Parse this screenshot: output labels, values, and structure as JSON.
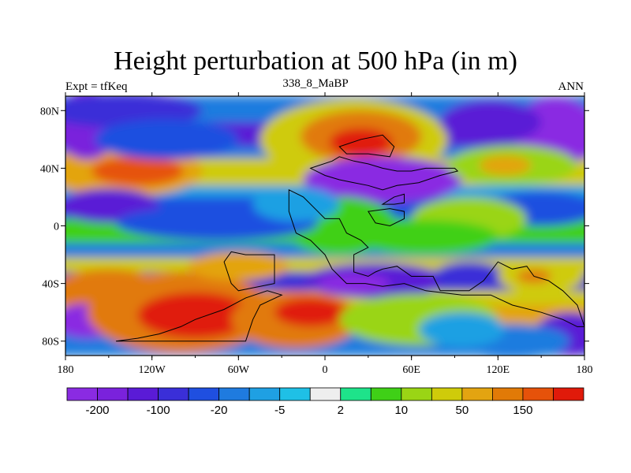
{
  "title": "Height perturbation at 500 hPa (in m)",
  "left_label": "Expt = tfKeq",
  "center_label": "338_8_MaBP",
  "right_label": "ANN",
  "map": {
    "lon_range": [
      -180,
      180
    ],
    "lat_range": [
      -90,
      90
    ],
    "x_ticks": [
      {
        "lon": -180,
        "label": "180"
      },
      {
        "lon": -120,
        "label": "120W"
      },
      {
        "lon": -60,
        "label": "60W"
      },
      {
        "lon": 0,
        "label": "0"
      },
      {
        "lon": 60,
        "label": "60E"
      },
      {
        "lon": 120,
        "label": "120E"
      },
      {
        "lon": 180,
        "label": "180"
      }
    ],
    "y_ticks": [
      {
        "lat": 80,
        "label": "80N"
      },
      {
        "lat": 40,
        "label": "40N"
      },
      {
        "lat": 0,
        "label": "0"
      },
      {
        "lat": -40,
        "label": "40S"
      },
      {
        "lat": -80,
        "label": "80S"
      }
    ]
  },
  "colorbar": {
    "colors": [
      "#8a2be2",
      "#7a22dc",
      "#5a1bd6",
      "#3a2fd8",
      "#1f4fe0",
      "#1f7bdf",
      "#1fa0e3",
      "#1fc0e6",
      "#eeeeee",
      "#1ee38a",
      "#3fd017",
      "#9ad515",
      "#cfcb0a",
      "#e3a411",
      "#e17a07",
      "#e6520a",
      "#e01a0a"
    ],
    "labels": [
      {
        "after_box": 1,
        "text": "-200"
      },
      {
        "after_box": 3,
        "text": "-100"
      },
      {
        "after_box": 5,
        "text": "-20"
      },
      {
        "after_box": 7,
        "text": "-5"
      },
      {
        "after_box": 9,
        "text": "2"
      },
      {
        "after_box": 11,
        "text": "10"
      },
      {
        "after_box": 13,
        "text": "50"
      },
      {
        "after_box": 15,
        "text": "150"
      }
    ]
  },
  "field_blobs": [
    {
      "lon": 20,
      "lat": 60,
      "rlon": 65,
      "rlat": 28,
      "v": 4
    },
    {
      "lon": 25,
      "lat": 62,
      "rlon": 42,
      "rlat": 18,
      "v": 6
    },
    {
      "lon": 25,
      "lat": 58,
      "rlon": 22,
      "rlat": 10,
      "v": 8
    },
    {
      "lon": 40,
      "lat": 32,
      "rlon": 55,
      "rlat": 16,
      "v": -8
    },
    {
      "lon": 55,
      "lat": 35,
      "rlon": 20,
      "rlat": 6,
      "v": -10
    },
    {
      "lon": -140,
      "lat": 38,
      "rlon": 55,
      "rlat": 18,
      "v": 5
    },
    {
      "lon": -130,
      "lat": 38,
      "rlon": 32,
      "rlat": 10,
      "v": 7
    },
    {
      "lon": -165,
      "lat": 70,
      "rlon": 22,
      "rlat": 24,
      "v": -7
    },
    {
      "lon": -140,
      "lat": 80,
      "rlon": 55,
      "rlat": 12,
      "v": -5
    },
    {
      "lon": -150,
      "lat": 14,
      "rlon": 35,
      "rlat": 12,
      "v": -6
    },
    {
      "lon": -110,
      "lat": 60,
      "rlon": 50,
      "rlat": 14,
      "v": -4
    },
    {
      "lon": 160,
      "lat": 65,
      "rlon": 30,
      "rlat": 24,
      "v": -8
    },
    {
      "lon": 115,
      "lat": 72,
      "rlon": 35,
      "rlat": 15,
      "v": -6
    },
    {
      "lon": 130,
      "lat": 42,
      "rlon": 45,
      "rlat": 14,
      "v": 3
    },
    {
      "lon": 125,
      "lat": 42,
      "rlon": 18,
      "rlat": 7,
      "v": 5
    },
    {
      "lon": 150,
      "lat": 12,
      "rlon": 40,
      "rlat": 12,
      "v": -4
    },
    {
      "lon": 100,
      "lat": 5,
      "rlon": 40,
      "rlat": 15,
      "v": 3
    },
    {
      "lon": 70,
      "lat": -8,
      "rlon": 50,
      "rlat": 12,
      "v": 2
    },
    {
      "lon": 10,
      "lat": 0,
      "rlon": 40,
      "rlat": 20,
      "v": 2
    },
    {
      "lon": -75,
      "lat": 2,
      "rlon": 70,
      "rlat": 12,
      "v": -4
    },
    {
      "lon": -20,
      "lat": 15,
      "rlon": 30,
      "rlat": 12,
      "v": -2
    },
    {
      "lon": -150,
      "lat": -45,
      "rlon": 40,
      "rlat": 15,
      "v": 6
    },
    {
      "lon": -165,
      "lat": -66,
      "rlon": 25,
      "rlat": 12,
      "v": -10
    },
    {
      "lon": -100,
      "lat": -60,
      "rlon": 65,
      "rlat": 28,
      "v": 6
    },
    {
      "lon": -90,
      "lat": -62,
      "rlon": 40,
      "rlat": 16,
      "v": 8
    },
    {
      "lon": -20,
      "lat": -65,
      "rlon": 45,
      "rlat": 20,
      "v": 6
    },
    {
      "lon": -10,
      "lat": -60,
      "rlon": 25,
      "rlat": 10,
      "v": 8
    },
    {
      "lon": -60,
      "lat": -28,
      "rlon": 35,
      "rlat": 10,
      "v": 5
    },
    {
      "lon": 35,
      "lat": -38,
      "rlon": 50,
      "rlat": 12,
      "v": -6
    },
    {
      "lon": 20,
      "lat": -40,
      "rlon": 25,
      "rlat": 7,
      "v": -8
    },
    {
      "lon": 100,
      "lat": -35,
      "rlon": 25,
      "rlat": 10,
      "v": -5
    },
    {
      "lon": 150,
      "lat": -35,
      "rlon": 30,
      "rlat": 12,
      "v": 4
    },
    {
      "lon": 145,
      "lat": -35,
      "rlon": 12,
      "rlat": 5,
      "v": 6
    },
    {
      "lon": 170,
      "lat": -75,
      "rlon": 25,
      "rlat": 15,
      "v": -6
    },
    {
      "lon": 65,
      "lat": -65,
      "rlon": 55,
      "rlat": 18,
      "v": 3
    },
    {
      "lon": 130,
      "lat": -80,
      "rlon": 40,
      "rlat": 12,
      "v": -3
    },
    {
      "lon": 95,
      "lat": -72,
      "rlon": 30,
      "rlat": 12,
      "v": -2
    }
  ],
  "continents": [
    [
      [
        -145,
        -80
      ],
      [
        -130,
        -78
      ],
      [
        -115,
        -75
      ],
      [
        -100,
        -70
      ],
      [
        -90,
        -65
      ],
      [
        -70,
        -58
      ],
      [
        -55,
        -50
      ],
      [
        -40,
        -45
      ],
      [
        -30,
        -48
      ],
      [
        -45,
        -55
      ],
      [
        -50,
        -65
      ],
      [
        -55,
        -80
      ],
      [
        -80,
        -80
      ],
      [
        -110,
        -80
      ],
      [
        -145,
        -80
      ]
    ],
    [
      [
        -65,
        -18
      ],
      [
        -55,
        -20
      ],
      [
        -35,
        -20
      ],
      [
        -35,
        -40
      ],
      [
        -60,
        -45
      ],
      [
        -65,
        -40
      ],
      [
        -70,
        -25
      ],
      [
        -65,
        -18
      ]
    ],
    [
      [
        -25,
        25
      ],
      [
        -15,
        20
      ],
      [
        -5,
        10
      ],
      [
        0,
        5
      ],
      [
        10,
        5
      ],
      [
        15,
        -5
      ],
      [
        25,
        -10
      ],
      [
        30,
        -15
      ],
      [
        20,
        -20
      ],
      [
        20,
        -32
      ],
      [
        30,
        -35
      ],
      [
        35,
        -32
      ],
      [
        40,
        -30
      ],
      [
        50,
        -28
      ],
      [
        60,
        -35
      ],
      [
        75,
        -35
      ],
      [
        80,
        -45
      ],
      [
        100,
        -45
      ],
      [
        110,
        -38
      ],
      [
        120,
        -25
      ],
      [
        130,
        -30
      ],
      [
        140,
        -28
      ],
      [
        145,
        -35
      ],
      [
        155,
        -38
      ],
      [
        165,
        -45
      ],
      [
        175,
        -55
      ],
      [
        180,
        -70
      ],
      [
        175,
        -70
      ],
      [
        165,
        -65
      ],
      [
        150,
        -60
      ],
      [
        130,
        -55
      ],
      [
        115,
        -48
      ],
      [
        95,
        -48
      ],
      [
        70,
        -45
      ],
      [
        55,
        -40
      ],
      [
        40,
        -42
      ],
      [
        28,
        -40
      ],
      [
        15,
        -40
      ],
      [
        5,
        -30
      ],
      [
        0,
        -20
      ],
      [
        -10,
        -10
      ],
      [
        -20,
        -5
      ],
      [
        -25,
        10
      ],
      [
        -25,
        25
      ]
    ],
    [
      [
        -10,
        40
      ],
      [
        5,
        45
      ],
      [
        10,
        48
      ],
      [
        20,
        45
      ],
      [
        30,
        43
      ],
      [
        40,
        40
      ],
      [
        50,
        38
      ],
      [
        60,
        38
      ],
      [
        70,
        40
      ],
      [
        85,
        40
      ],
      [
        90,
        40
      ],
      [
        92,
        38
      ],
      [
        80,
        35
      ],
      [
        65,
        30
      ],
      [
        50,
        28
      ],
      [
        40,
        25
      ],
      [
        30,
        28
      ],
      [
        20,
        30
      ],
      [
        10,
        32
      ],
      [
        0,
        35
      ],
      [
        -10,
        40
      ]
    ],
    [
      [
        10,
        55
      ],
      [
        25,
        60
      ],
      [
        40,
        63
      ],
      [
        48,
        55
      ],
      [
        45,
        48
      ],
      [
        30,
        50
      ],
      [
        15,
        50
      ],
      [
        10,
        55
      ]
    ],
    [
      [
        30,
        10
      ],
      [
        45,
        12
      ],
      [
        55,
        10
      ],
      [
        55,
        5
      ],
      [
        45,
        0
      ],
      [
        35,
        2
      ],
      [
        30,
        10
      ]
    ],
    [
      [
        40,
        15
      ],
      [
        48,
        20
      ],
      [
        55,
        22
      ],
      [
        55,
        16
      ],
      [
        48,
        15
      ],
      [
        40,
        15
      ]
    ]
  ]
}
